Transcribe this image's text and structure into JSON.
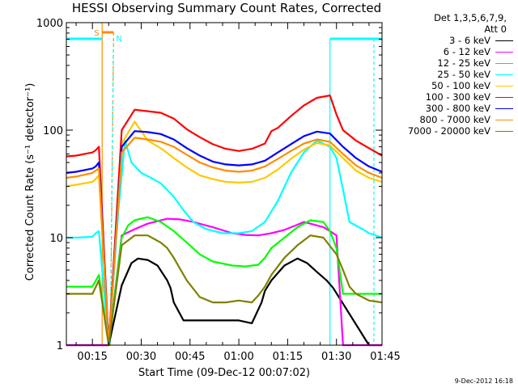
{
  "chart_data": {
    "type": "line",
    "title": "HESSI Observing Summary Count Rates, Corrected",
    "xlabel": "Start Time (09-Dec-12 00:07:02)",
    "ylabel": "Corrected Count Rate (s⁻¹ detector⁻¹)",
    "y_scale": "log",
    "ylim": [
      1,
      1000
    ],
    "xlim_minutes": [
      7,
      104
    ],
    "y_ticks": [
      "1",
      "10",
      "100",
      "1000"
    ],
    "x_ticks": [
      {
        "label": "00:15",
        "minute": 15
      },
      {
        "label": "00:30",
        "minute": 30
      },
      {
        "label": "00:45",
        "minute": 45
      },
      {
        "label": "01:00",
        "minute": 60
      },
      {
        "label": "01:15",
        "minute": 75
      },
      {
        "label": "01:30",
        "minute": 90
      },
      {
        "label": "01:45",
        "minute": 105
      }
    ],
    "legend_header": [
      "Det 1,3,5,6,7,9,",
      "Att 0"
    ],
    "legend_position": "right",
    "bars": {
      "s_label": "S",
      "n_label": "N",
      "saa_color": "#ff8c00",
      "night_color": "#00ffff"
    },
    "timestamp": "9-Dec-2012 16:18",
    "series": [
      {
        "name": "3 - 6 keV",
        "color": "#000000",
        "x": [
          7,
          18,
          19,
          20,
          24,
          27,
          29,
          32,
          35,
          38,
          39,
          40,
          43,
          55,
          60,
          64,
          67,
          68,
          70,
          74,
          78,
          81,
          84,
          87,
          89,
          100,
          104
        ],
        "y": [
          1.0,
          1.0,
          1.0,
          1.0,
          3.6,
          5.8,
          6.4,
          6.2,
          5.5,
          4.0,
          3.4,
          2.5,
          1.7,
          1.7,
          1.7,
          1.6,
          2.5,
          3.2,
          4.0,
          5.5,
          6.4,
          5.8,
          4.8,
          4.0,
          3.4,
          1.0,
          1.0
        ]
      },
      {
        "name": "6 - 12 keV",
        "color": "#ff00ff",
        "x": [
          7,
          10,
          12,
          20,
          24,
          28,
          32,
          38,
          42,
          46,
          52,
          58,
          62,
          66,
          70,
          74,
          78,
          80,
          82,
          86,
          88,
          90,
          92,
          94,
          104
        ],
        "y": [
          1.0,
          1.0,
          1.0,
          1.0,
          10.5,
          12.0,
          13.5,
          15.0,
          14.8,
          14.0,
          12.5,
          11.0,
          10.6,
          10.5,
          11.0,
          11.8,
          13.2,
          14.0,
          13.5,
          12.5,
          11.5,
          10.5,
          1.0,
          1.0,
          1.0
        ]
      },
      {
        "name": "12 - 25 keV",
        "color": "#00ff00",
        "x": [
          7,
          15,
          17,
          20,
          24,
          26,
          28,
          32,
          36,
          40,
          44,
          48,
          52,
          58,
          62,
          66,
          68,
          70,
          74,
          78,
          82,
          86,
          88,
          90,
          92,
          94,
          104
        ],
        "y": [
          3.5,
          3.5,
          4.5,
          1.0,
          10.0,
          13.0,
          14.5,
          15.5,
          14.0,
          11.5,
          9.0,
          7.0,
          6.0,
          5.5,
          5.4,
          5.6,
          6.5,
          8.0,
          10.0,
          12.5,
          14.5,
          14.0,
          11.5,
          8.0,
          3.0,
          3.0,
          3.0
        ]
      },
      {
        "name": "25 - 50 keV",
        "color": "#00ffff",
        "x": [
          7,
          10,
          15,
          16,
          17,
          20,
          23,
          25,
          27,
          30,
          33,
          36,
          40,
          43,
          46,
          50,
          55,
          60,
          64,
          68,
          72,
          76,
          80,
          84,
          88,
          90,
          92,
          94,
          98,
          100,
          104
        ],
        "y": [
          10.0,
          10.0,
          10.2,
          11.0,
          11.5,
          1.0,
          18.0,
          80.0,
          50.0,
          40.0,
          36.0,
          32.0,
          24.0,
          18.0,
          14.0,
          12.0,
          11.0,
          11.0,
          11.5,
          14.0,
          22.0,
          40.0,
          62.0,
          80.0,
          70.0,
          55.0,
          28.0,
          14.0,
          12.0,
          11.0,
          10.0
        ]
      },
      {
        "name": "50 - 100 keV",
        "color": "#ffc800",
        "x": [
          7,
          10,
          15,
          16,
          17,
          20,
          24,
          28,
          32,
          36,
          40,
          44,
          48,
          52,
          56,
          60,
          64,
          68,
          72,
          76,
          80,
          84,
          88,
          92,
          96,
          100,
          104
        ],
        "y": [
          30.0,
          31.0,
          33.0,
          35.0,
          38.0,
          1.0,
          75.0,
          120.0,
          80.0,
          68.0,
          55.0,
          45.0,
          38.0,
          35.0,
          33.0,
          32.5,
          33.0,
          36.0,
          43.0,
          54.0,
          66.0,
          76.0,
          72.0,
          55.0,
          42.0,
          36.0,
          33.0
        ]
      },
      {
        "name": "100 - 300 keV",
        "color": "#ff0000",
        "x": [
          7,
          10,
          15,
          16,
          17,
          20,
          24,
          28,
          32,
          36,
          40,
          44,
          48,
          52,
          56,
          60,
          64,
          68,
          70,
          72,
          76,
          80,
          84,
          88,
          90,
          92,
          96,
          100,
          104
        ],
        "y": [
          57.0,
          58.0,
          62.0,
          65.0,
          70.0,
          1.0,
          100.0,
          155.0,
          150.0,
          145.0,
          128.0,
          102.0,
          86.0,
          74.0,
          67.0,
          64.0,
          67.0,
          75.0,
          98.0,
          105.0,
          135.0,
          170.0,
          200.0,
          210.0,
          140.0,
          100.0,
          80.0,
          68.0,
          58.0
        ]
      },
      {
        "name": "300 - 800 keV",
        "color": "#0000ff",
        "x": [
          7,
          10,
          15,
          16,
          17,
          20,
          24,
          28,
          32,
          36,
          40,
          44,
          48,
          52,
          56,
          60,
          64,
          68,
          72,
          76,
          80,
          84,
          88,
          92,
          96,
          100,
          104
        ],
        "y": [
          40.0,
          41.0,
          44.0,
          46.0,
          50.0,
          1.0,
          70.0,
          98.0,
          96.0,
          92.0,
          82.0,
          68.0,
          58.0,
          51.0,
          48.0,
          47.0,
          48.0,
          52.0,
          62.0,
          74.0,
          88.0,
          97.0,
          93.0,
          70.0,
          55.0,
          46.0,
          41.0
        ]
      },
      {
        "name": "800 - 7000 keV",
        "color": "#ff8c00",
        "x": [
          7,
          10,
          15,
          16,
          17,
          20,
          24,
          28,
          32,
          36,
          40,
          44,
          48,
          52,
          56,
          60,
          64,
          68,
          72,
          76,
          80,
          84,
          88,
          92,
          96,
          100,
          104
        ],
        "y": [
          36.0,
          37.0,
          40.0,
          42.0,
          44.0,
          1.0,
          62.0,
          85.0,
          82.0,
          78.0,
          70.0,
          59.0,
          50.0,
          45.0,
          42.0,
          41.0,
          42.0,
          46.0,
          54.0,
          64.0,
          75.0,
          82.0,
          78.0,
          60.0,
          47.0,
          40.0,
          36.0
        ]
      },
      {
        "name": "7000 - 20000 keV",
        "color": "#808000",
        "x": [
          7,
          15,
          17,
          20,
          24,
          28,
          32,
          36,
          38,
          40,
          44,
          48,
          52,
          56,
          60,
          64,
          66,
          68,
          70,
          74,
          78,
          82,
          86,
          90,
          92,
          94,
          96,
          100,
          104
        ],
        "y": [
          3.0,
          3.0,
          4.0,
          1.0,
          8.5,
          10.5,
          10.5,
          9.0,
          8.0,
          6.5,
          4.0,
          2.8,
          2.5,
          2.5,
          2.6,
          2.5,
          2.9,
          3.5,
          4.5,
          6.5,
          8.5,
          10.5,
          10.0,
          7.0,
          5.0,
          3.5,
          3.0,
          2.6,
          2.5
        ]
      }
    ]
  }
}
